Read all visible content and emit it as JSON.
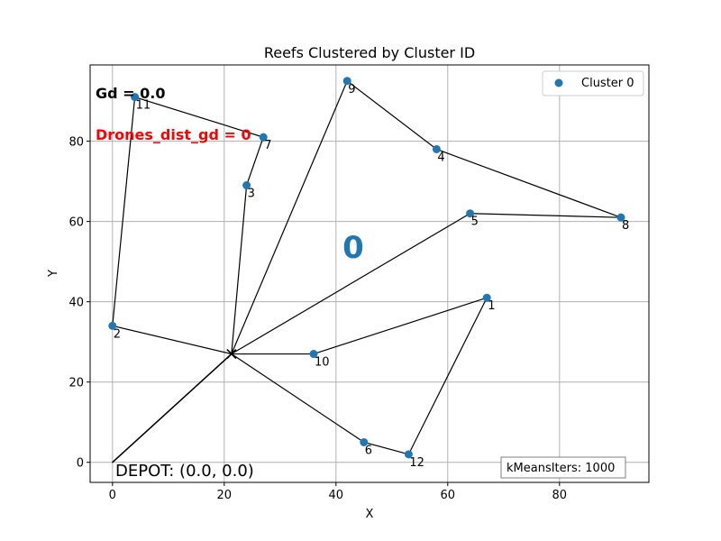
{
  "chart_data": {
    "type": "scatter",
    "title": "Reefs Clustered by Cluster ID",
    "xlabel": "X",
    "ylabel": "Y",
    "xlim": [
      -4,
      96
    ],
    "ylim": [
      -5,
      99
    ],
    "xticks": [
      0,
      20,
      40,
      60,
      80
    ],
    "yticks": [
      0,
      20,
      40,
      60,
      80
    ],
    "grid": true,
    "legend": {
      "placement": "top-right",
      "label": "Cluster 0",
      "color": "#1f77b4"
    },
    "points": [
      {
        "id": "1",
        "x": 67,
        "y": 41
      },
      {
        "id": "2",
        "x": 0,
        "y": 34
      },
      {
        "id": "3",
        "x": 24,
        "y": 69
      },
      {
        "id": "4",
        "x": 58,
        "y": 78
      },
      {
        "id": "5",
        "x": 64,
        "y": 62
      },
      {
        "id": "6",
        "x": 45,
        "y": 5
      },
      {
        "id": "7",
        "x": 27,
        "y": 81
      },
      {
        "id": "8",
        "x": 91,
        "y": 61
      },
      {
        "id": "9",
        "x": 42,
        "y": 95
      },
      {
        "id": "10",
        "x": 36,
        "y": 27
      },
      {
        "id": "11",
        "x": 4,
        "y": 91
      },
      {
        "id": "12",
        "x": 53,
        "y": 2
      }
    ],
    "hub": {
      "x": 21.3,
      "y": 27
    },
    "depot": {
      "x": 0,
      "y": 0
    },
    "routes": [
      [
        "hub",
        "2",
        "11",
        "7",
        "3",
        "hub"
      ],
      [
        "hub",
        "9",
        "4",
        "8",
        "5",
        "hub"
      ],
      [
        "hub",
        "10",
        "1",
        "12",
        "6",
        "hub"
      ]
    ],
    "annotations": {
      "gd": "Gd = 0.0",
      "drones": "Drones_dist_gd = 0",
      "cluster_id": "0",
      "depot": "DEPOT: (0.0, 0.0)",
      "kmeans": "kMeansIters: 1000"
    },
    "colors": {
      "points": "#1f77b4",
      "drones_text": "#ff0000",
      "cluster_id": "#1f77b4",
      "grid": "#b0b0b0",
      "route": "#000000"
    }
  }
}
